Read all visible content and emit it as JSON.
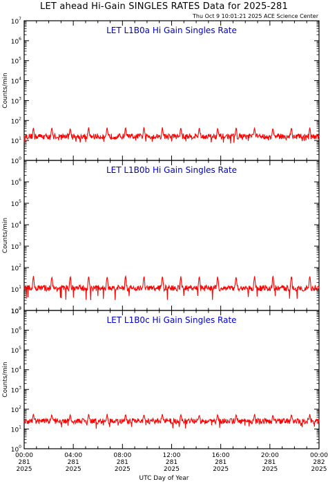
{
  "page": {
    "title": "LET ahead Hi-Gain SINGLES RATES Data for 2025-281",
    "timestamp": "Thu Oct  9 10:01:21 2025 ACE Science Center",
    "xaxis_title": "UTC Day of Year"
  },
  "colors": {
    "series": "#ff0000",
    "panel_title": "#0000cc",
    "axes": "#000000"
  },
  "chart_data": [
    {
      "type": "line",
      "title": "LET L1B0a Hi Gain Singles Rate",
      "ylabel": "Counts/min",
      "yscale": "log",
      "ylim": [
        1,
        10000000
      ],
      "y_ticks": [
        {
          "base": "10",
          "exp": "0"
        },
        {
          "base": "10",
          "exp": "1"
        },
        {
          "base": "10",
          "exp": "2"
        },
        {
          "base": "10",
          "exp": "3"
        },
        {
          "base": "10",
          "exp": "4"
        },
        {
          "base": "10",
          "exp": "5"
        },
        {
          "base": "10",
          "exp": "6"
        },
        {
          "base": "10",
          "exp": "7"
        }
      ],
      "series": [
        {
          "baseline": 16,
          "spike_peak": 48,
          "spike_period_hours": 1.5,
          "values_range": [
            7,
            50
          ]
        }
      ]
    },
    {
      "type": "line",
      "title": "LET L1B0b Hi Gain Singles Rate",
      "ylabel": "Counts/min",
      "yscale": "log",
      "ylim": [
        1,
        10000000
      ],
      "y_ticks": [
        {
          "base": "10",
          "exp": "0"
        },
        {
          "base": "10",
          "exp": "1"
        },
        {
          "base": "10",
          "exp": "2"
        },
        {
          "base": "10",
          "exp": "3"
        },
        {
          "base": "10",
          "exp": "4"
        },
        {
          "base": "10",
          "exp": "5"
        },
        {
          "base": "10",
          "exp": "6"
        }
      ],
      "series": [
        {
          "baseline": 11,
          "spike_peak": 45,
          "spike_period_hours": 1.5,
          "values_range": [
            3,
            48
          ]
        }
      ]
    },
    {
      "type": "line",
      "title": "LET L1B0c Hi Gain Singles Rate",
      "ylabel": "Counts/min",
      "yscale": "log",
      "ylim": [
        1,
        10000000
      ],
      "y_ticks": [
        {
          "base": "10",
          "exp": "0"
        },
        {
          "base": "10",
          "exp": "1"
        },
        {
          "base": "10",
          "exp": "2"
        },
        {
          "base": "10",
          "exp": "3"
        },
        {
          "base": "10",
          "exp": "4"
        },
        {
          "base": "10",
          "exp": "5"
        },
        {
          "base": "10",
          "exp": "6"
        },
        {
          "base": "10",
          "exp": "7"
        }
      ],
      "series": [
        {
          "baseline": 25,
          "spike_peak": 60,
          "spike_period_hours": 1.5,
          "values_range": [
            10,
            65
          ]
        }
      ]
    }
  ],
  "x_axis": {
    "range_hours": [
      0,
      24
    ],
    "ticks": [
      {
        "hour": 0,
        "time": "00:00",
        "doy": "281",
        "year": "2025"
      },
      {
        "hour": 4,
        "time": "04:00",
        "doy": "281",
        "year": "2025"
      },
      {
        "hour": 8,
        "time": "08:00",
        "doy": "281",
        "year": "2025"
      },
      {
        "hour": 12,
        "time": "12:00",
        "doy": "281",
        "year": "2025"
      },
      {
        "hour": 16,
        "time": "16:00",
        "doy": "281",
        "year": "2025"
      },
      {
        "hour": 20,
        "time": "20:00",
        "doy": "281",
        "year": "2025"
      },
      {
        "hour": 24,
        "time": "00:00",
        "doy": "282",
        "year": "2025"
      }
    ]
  }
}
